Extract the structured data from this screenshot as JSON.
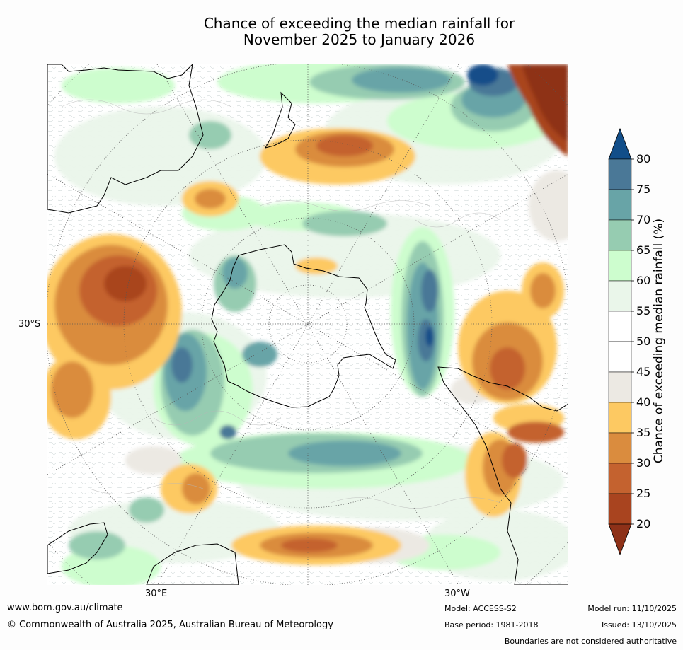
{
  "title": {
    "line1": "Chance of exceeding the median rainfall for",
    "line2": "November 2025 to January 2026"
  },
  "map": {
    "lat_label": "30°S",
    "lon_label_east": "30°E",
    "lon_label_west": "30°W",
    "colors": {
      "ocean_white": "#ffffff",
      "coast": "#000000",
      "graticule": "#555555"
    }
  },
  "colorbar": {
    "title": "Chance of exceeding median rainfall (%)",
    "ticks": [
      "20",
      "25",
      "30",
      "35",
      "40",
      "45",
      "50",
      "55",
      "60",
      "65",
      "70",
      "75",
      "80"
    ],
    "bins": [
      {
        "range": "<20",
        "color": "#8e3118"
      },
      {
        "range": "20-25",
        "color": "#a9441f"
      },
      {
        "range": "25-30",
        "color": "#c4622f"
      },
      {
        "range": "30-35",
        "color": "#da8c3e"
      },
      {
        "range": "35-40",
        "color": "#fdc962"
      },
      {
        "range": "40-45",
        "color": "#ece9e3"
      },
      {
        "range": "45-50",
        "color": "#ffffff"
      },
      {
        "range": "50-55",
        "color": "#ffffff"
      },
      {
        "range": "55-60",
        "color": "#eaf6ea"
      },
      {
        "range": "60-65",
        "color": "#cdfdce"
      },
      {
        "range": "65-70",
        "color": "#96ccb1"
      },
      {
        "range": "70-75",
        "color": "#68a4a7"
      },
      {
        "range": "75-80",
        "color": "#4a7897"
      },
      {
        "range": ">80",
        "color": "#124e89"
      }
    ]
  },
  "footer": {
    "website": "www.bom.gov.au/climate",
    "copyright": "© Commonwealth of Australia 2025, Australian Bureau of Meteorology",
    "model": "Model: ACCESS-S2",
    "base_period": "Base period: 1981-2018",
    "model_run": "Model run: 11/10/2025",
    "issued": "Issued: 13/10/2025",
    "disclaimer": "Boundaries are not considered authoritative"
  }
}
